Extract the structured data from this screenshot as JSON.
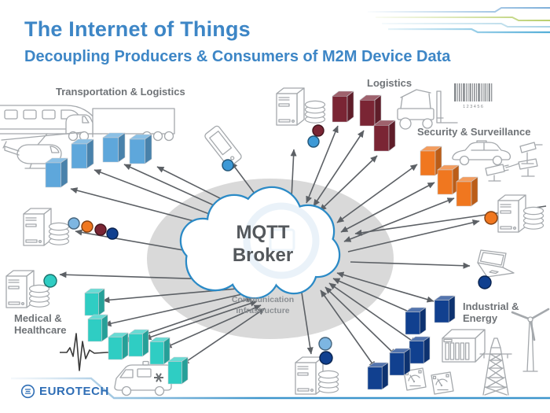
{
  "slide": {
    "title": "The Internet of Things",
    "subtitle": "Decoupling Producers & Consumers of M2M Device Data"
  },
  "broker": {
    "name_line1": "MQTT",
    "name_line2": "Broker",
    "infra_line1": "Communication",
    "infra_line2": "Infrastructure"
  },
  "labels": {
    "transportation": "Transportation & Logistics",
    "logistics": "Logistics",
    "security": "Security & Surveillance",
    "medical_line1": "Medical &",
    "medical_line2": "Healthcare",
    "industrial_line1": "Industrial &",
    "industrial_line2": "Energy"
  },
  "barcode_text": "123456",
  "footer": {
    "brand": "EUROTECH"
  },
  "colors": {
    "title_blue": "#3d86c6",
    "label_gray": "#6f7377",
    "arrow": "#5c6065",
    "ellipse": "#d9d9d9",
    "cloud_stroke": "#2b8ac6",
    "icon_stroke": "#a4a8ac",
    "cube_blue": "#5ea7db",
    "cube_maroon": "#7a2534",
    "cube_orange": "#f0771f",
    "cube_teal": "#2fcdc3",
    "cube_navy": "#11408f",
    "dot_lightblue": "#7db6e2",
    "dot_blue": "#3d99d6",
    "brand_blue": "#2e6db5",
    "footer_line": "#3e96cc",
    "trace_blue": "#7fb0da",
    "trace_green": "#b9cf6e",
    "trace_lightblue": "#abd4e6",
    "trace_cyan": "#54aed8"
  },
  "icons": {
    "cloud-icon": "MQTT broker cloud",
    "train-icon": "high-speed train",
    "truck-icon": "semi truck",
    "helicopter-icon": "helicopter",
    "smartphone-icon": "mobile device",
    "server-icon": "server tower",
    "database-icon": "database disk stack",
    "forklift-icon": "forklift",
    "barcode-icon": "barcode",
    "car-icon": "patrol car",
    "cctv-camera-icon": "surveillance cameras",
    "laptop-icon": "laptop",
    "ambulance-icon": "ambulance",
    "ekg-icon": "heartbeat trace",
    "industrial-rack-icon": "industrial chassis",
    "gauge-icon": "utility meter",
    "power-pylon-icon": "transmission tower",
    "wind-turbine-icon": "wind turbine",
    "eurotech-icon": "eurotech logo mark"
  }
}
